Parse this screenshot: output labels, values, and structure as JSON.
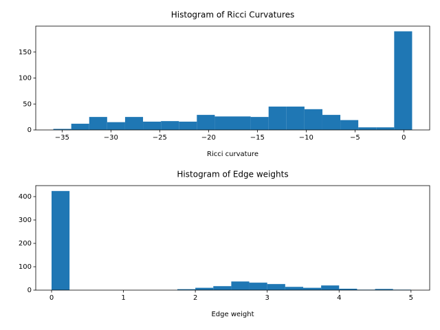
{
  "chart_data": [
    {
      "type": "histogram",
      "title": "Histogram of Ricci Curvatures",
      "xlabel": "Ricci curvature",
      "color": "#1f77b4",
      "bins": [
        -35.9,
        -34.0625,
        -32.225,
        -30.3875,
        -28.55,
        -26.7125,
        -24.875,
        -23.0375,
        -21.2,
        -19.3625,
        -17.525,
        -15.6875,
        -13.85,
        -12.0125,
        -10.175,
        -8.3375,
        -6.5,
        -4.6625,
        -2.825,
        -0.9875,
        0.85
      ],
      "values": [
        2,
        12,
        25,
        15,
        25,
        16,
        17,
        16,
        29,
        26,
        26,
        25,
        45,
        45,
        40,
        29,
        19,
        5,
        5,
        190
      ],
      "xlim": [
        -37.7,
        2.65
      ],
      "ylim": [
        0,
        200
      ],
      "xticks": [
        {
          "value": -35,
          "label": "−35"
        },
        {
          "value": -30,
          "label": "−30"
        },
        {
          "value": -25,
          "label": "−25"
        },
        {
          "value": -20,
          "label": "−20"
        },
        {
          "value": -15,
          "label": "−15"
        },
        {
          "value": -10,
          "label": "−10"
        },
        {
          "value": -5,
          "label": "−5"
        },
        0
      ],
      "yticks": [
        0,
        50,
        100,
        150
      ]
    },
    {
      "type": "histogram",
      "title": "Histogram of Edge weights",
      "xlabel": "Edge weight",
      "color": "#1f77b4",
      "bins": [
        0,
        0.25,
        0.5,
        0.75,
        1,
        1.25,
        1.5,
        1.75,
        2,
        2.25,
        2.5,
        2.75,
        3,
        3.25,
        3.5,
        3.75,
        4,
        4.25,
        4.5,
        4.75,
        5
      ],
      "values": [
        424,
        0,
        0,
        0,
        0,
        0,
        0,
        4,
        10,
        17,
        37,
        32,
        26,
        14,
        10,
        20,
        6,
        2,
        5,
        2
      ],
      "xlim": [
        -0.22,
        5.26
      ],
      "ylim": [
        0,
        447
      ],
      "xticks": [
        0,
        1,
        2,
        3,
        4,
        5
      ],
      "yticks": [
        0,
        100,
        200,
        300,
        400
      ]
    }
  ]
}
